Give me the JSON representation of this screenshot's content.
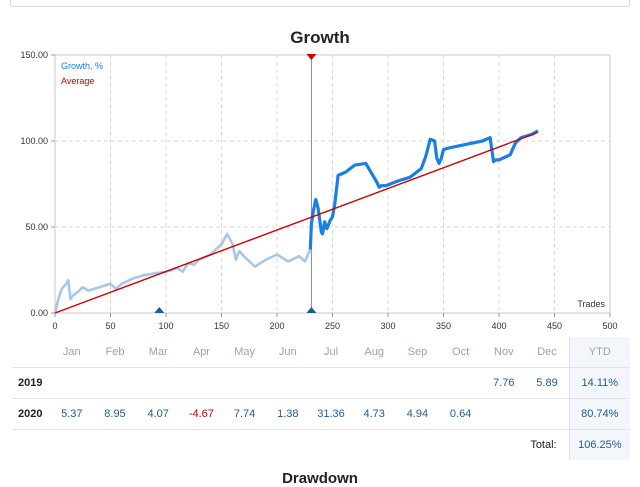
{
  "chart_data": {
    "type": "line",
    "title": "Growth",
    "xlabel": "Trades",
    "ylabel": "",
    "xlim": [
      0,
      500
    ],
    "ylim": [
      0,
      150
    ],
    "x_ticks": [
      "0",
      "50",
      "100",
      "150",
      "200",
      "250",
      "300",
      "350",
      "400",
      "450",
      "500"
    ],
    "y_ticks": [
      "0.00",
      "50.00",
      "100.00",
      "150.00"
    ],
    "grid": true,
    "legend_position": "top-left",
    "series": [
      {
        "name": "Growth, %",
        "color": "#1a7fe0",
        "history_color": "#a8c6e6",
        "history_until_x": 230,
        "x": [
          0,
          3,
          6,
          10,
          12,
          14,
          16,
          20,
          25,
          30,
          40,
          50,
          55,
          60,
          70,
          80,
          90,
          100,
          105,
          110,
          115,
          120,
          125,
          130,
          140,
          150,
          155,
          160,
          163,
          166,
          170,
          180,
          190,
          200,
          210,
          220,
          225,
          230,
          231,
          233,
          235,
          237,
          240,
          241,
          243,
          245,
          248,
          250,
          252,
          255,
          262,
          270,
          280,
          290,
          292,
          294,
          298,
          302,
          306,
          310,
          320,
          330,
          334,
          338,
          342,
          344,
          346,
          348,
          350,
          355,
          370,
          385,
          392,
          395,
          397,
          400,
          410,
          415,
          420,
          430,
          435
        ],
        "y": [
          0,
          8,
          14,
          17,
          19,
          8,
          10,
          12,
          15,
          13,
          15,
          17,
          14,
          17,
          20,
          22,
          23,
          24,
          25,
          26,
          24,
          29,
          28,
          31,
          34,
          40,
          46,
          40,
          31,
          36,
          33,
          27,
          31,
          34,
          30,
          33,
          30,
          37,
          52,
          60,
          66,
          61,
          47,
          46,
          53,
          49,
          54,
          56,
          63,
          80,
          82,
          86,
          87,
          76,
          73,
          74,
          74,
          75,
          76,
          77,
          79,
          84,
          91,
          101,
          100,
          90,
          87,
          90,
          95,
          96,
          98,
          100,
          102,
          88,
          89,
          89,
          92,
          99,
          102,
          104,
          106
        ]
      },
      {
        "name": "Average",
        "color": "#cc0000",
        "x": [
          0,
          435
        ],
        "y": [
          0,
          105
        ]
      }
    ],
    "markers": {
      "top_marker_x": 231,
      "bottom_markers_x": [
        94,
        231
      ]
    }
  },
  "monthly_table": {
    "headers": [
      "Jan",
      "Feb",
      "Mar",
      "Apr",
      "May",
      "Jun",
      "Jul",
      "Aug",
      "Sep",
      "Oct",
      "Nov",
      "Dec",
      "YTD"
    ],
    "rows": [
      {
        "year": "2019",
        "values": [
          "",
          "",
          "",
          "",
          "",
          "",
          "",
          "",
          "",
          "",
          "7.76",
          "5.89"
        ],
        "ytd": "14.11%"
      },
      {
        "year": "2020",
        "values": [
          "5.37",
          "8.95",
          "4.07",
          "-4.67",
          "7.74",
          "1.38",
          "31.36",
          "4.73",
          "4.94",
          "0.64",
          "",
          ""
        ],
        "ytd": "80.74%"
      }
    ],
    "total_label": "Total:",
    "total_value": "106.25%"
  },
  "next_section_heading": "Drawdown",
  "colors": {
    "growth_line": "#1a7fe0",
    "history_line": "#a8c6e6",
    "average_line": "#cc0000",
    "marker": "#1e5c8f",
    "positive": "#1e5c8f",
    "negative": "#c00000"
  }
}
